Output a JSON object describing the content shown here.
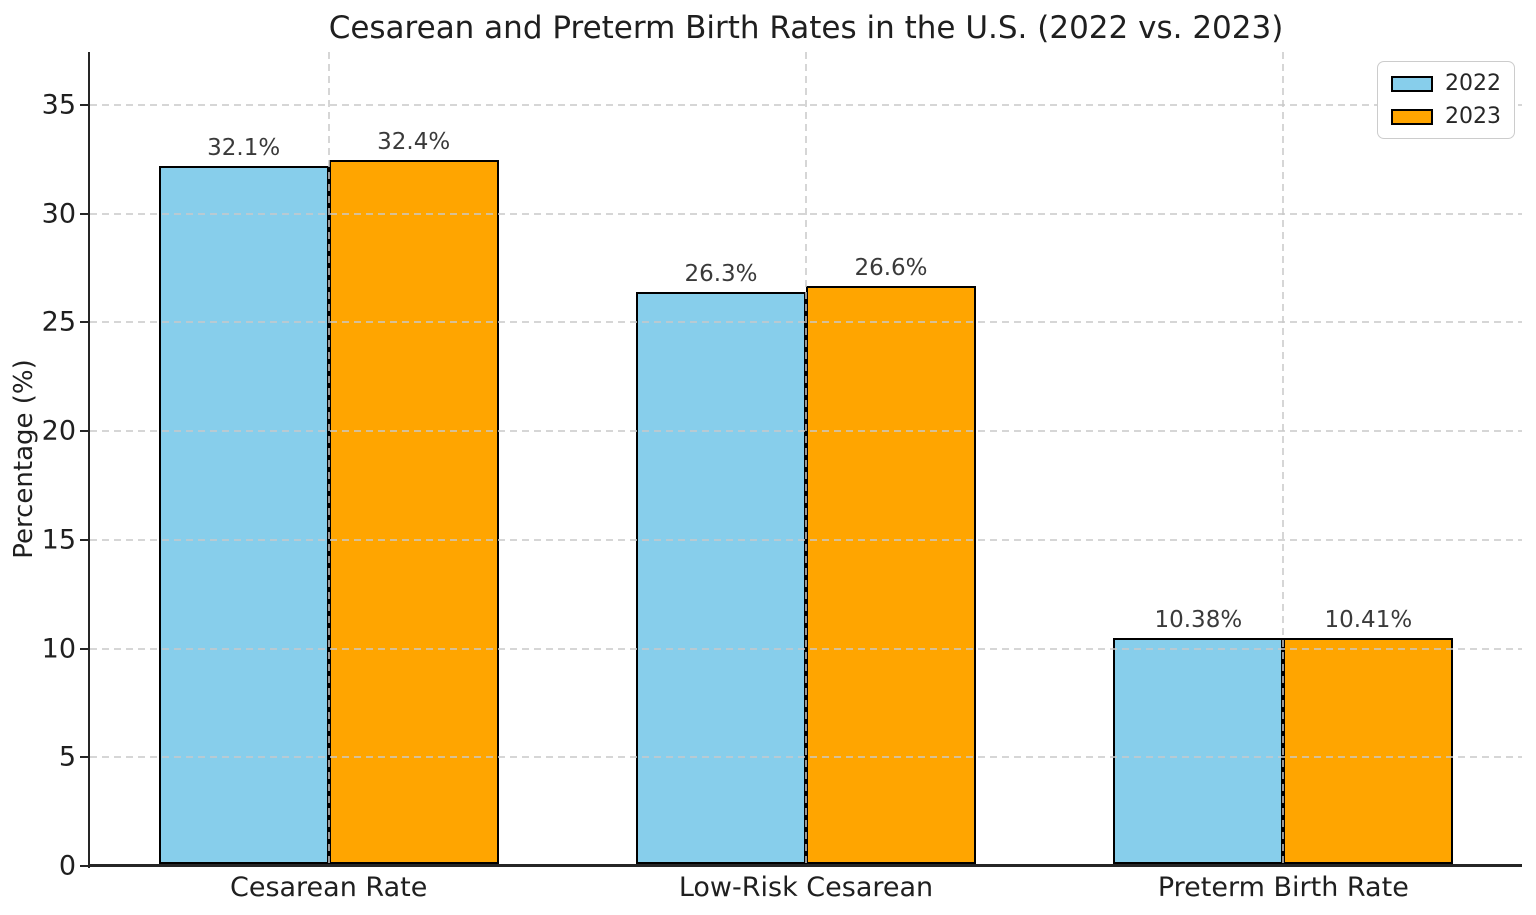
{
  "chart_data": {
    "type": "bar",
    "title": "Cesarean and Preterm Birth Rates in the U.S. (2022 vs. 2023)",
    "ylabel": "Percentage (%)",
    "xlabel": "",
    "categories": [
      "Cesarean Rate",
      "Low-Risk Cesarean",
      "Preterm Birth Rate"
    ],
    "series": [
      {
        "name": "2022",
        "color": "#87CEEB",
        "values": [
          32.1,
          26.3,
          10.38
        ],
        "value_labels": [
          "32.1%",
          "26.3%",
          "10.38%"
        ]
      },
      {
        "name": "2023",
        "color": "#FFA500",
        "values": [
          32.4,
          26.6,
          10.41
        ],
        "value_labels": [
          "32.4%",
          "26.6%",
          "10.41%"
        ]
      }
    ],
    "yticks": [
      0,
      5,
      10,
      15,
      20,
      25,
      30,
      35
    ],
    "ytick_labels": [
      "0",
      "5",
      "10",
      "15",
      "20",
      "25",
      "30",
      "35"
    ],
    "ylim": [
      0,
      37.44
    ],
    "grid": true,
    "grid_style": "dashed",
    "legend_position": "upper right",
    "bar_edge_color": "#000000"
  }
}
